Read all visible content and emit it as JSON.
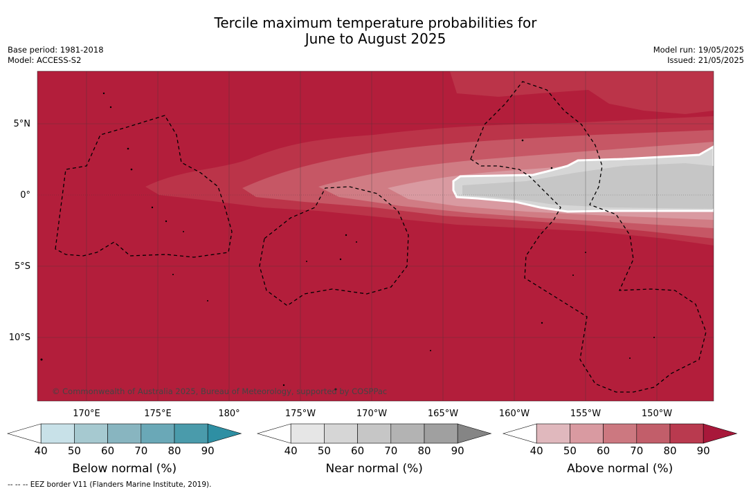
{
  "title_line1": "Tercile maximum temperature probabilities for",
  "title_line2": "June to August 2025",
  "meta_left": {
    "base_period": "Base period: 1981-2018",
    "model": "Model: ACCESS-S2"
  },
  "meta_right": {
    "model_run": "Model run: 19/05/2025",
    "issued": "Issued: 21/05/2025"
  },
  "map": {
    "lat_labels": [
      "5°N",
      "0°",
      "5°S",
      "10°S"
    ],
    "lon_labels": [
      "170°E",
      "175°E",
      "180°",
      "175°W",
      "170°W",
      "165°W",
      "160°W",
      "155°W",
      "150°W"
    ],
    "copyright": "© Commonwealth of Australia 2025, Bureau of Meteorology, supported by COSPPac",
    "colors": {
      "above_90": "#b31e3b",
      "above_80": "#bb3449",
      "above_70": "#c65765",
      "above_60": "#d07c84",
      "above_50": "#d99aa1",
      "near_60": "#c6c6c6",
      "near_50": "#d6d6d6",
      "eez_line": "#000000"
    }
  },
  "colorbars": [
    {
      "label": "Below normal (%)",
      "ticks": [
        "40",
        "50",
        "60",
        "70",
        "80",
        "90"
      ],
      "colors": [
        "#ffffff",
        "#c8e1e8",
        "#a6c9d0",
        "#88b5c0",
        "#6aa8b7",
        "#4a9bab",
        "#2e8fa3"
      ]
    },
    {
      "label": "Near normal (%)",
      "ticks": [
        "40",
        "50",
        "60",
        "70",
        "80",
        "90"
      ],
      "colors": [
        "#ffffff",
        "#e6e6e6",
        "#d6d6d6",
        "#c6c6c6",
        "#b3b3b3",
        "#a0a0a0",
        "#858585"
      ]
    },
    {
      "label": "Above normal (%)",
      "ticks": [
        "40",
        "50",
        "60",
        "70",
        "80",
        "90"
      ],
      "colors": [
        "#ffffff",
        "#e0b8bd",
        "#d99aa1",
        "#cc7880",
        "#c25e6a",
        "#b93a4f",
        "#a8183a"
      ]
    }
  ],
  "footnote": "--  --  -- EEZ border V11 (Flanders Marine Institute, 2019)."
}
